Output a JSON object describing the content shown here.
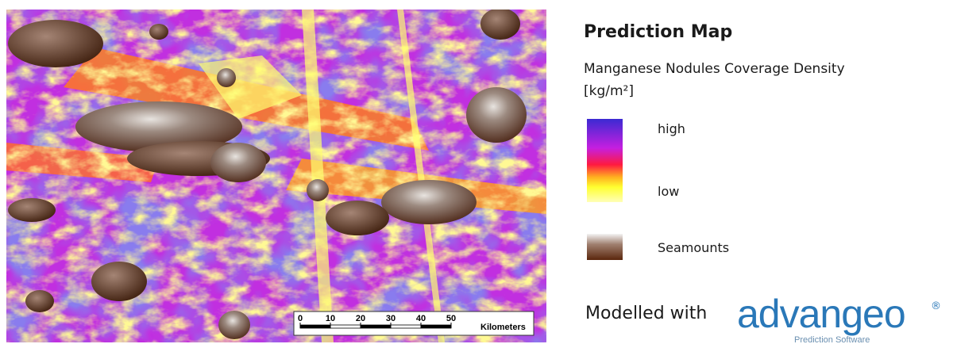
{
  "map": {
    "scale_bar": {
      "ticks": [
        0,
        10,
        20,
        30,
        40,
        50
      ],
      "unit": "Kilometers"
    }
  },
  "legend": {
    "title": "Prediction Map",
    "subtitle": "Manganese Nodules Coverage Density",
    "unit": "[kg/m²]",
    "items": [
      {
        "label": "high"
      },
      {
        "label": "low"
      },
      {
        "label": "Seamounts"
      }
    ]
  },
  "footer": {
    "text": "Modelled with",
    "logo": "advangeo",
    "logo_mark": "®",
    "logo_tagline": "Prediction Software"
  }
}
